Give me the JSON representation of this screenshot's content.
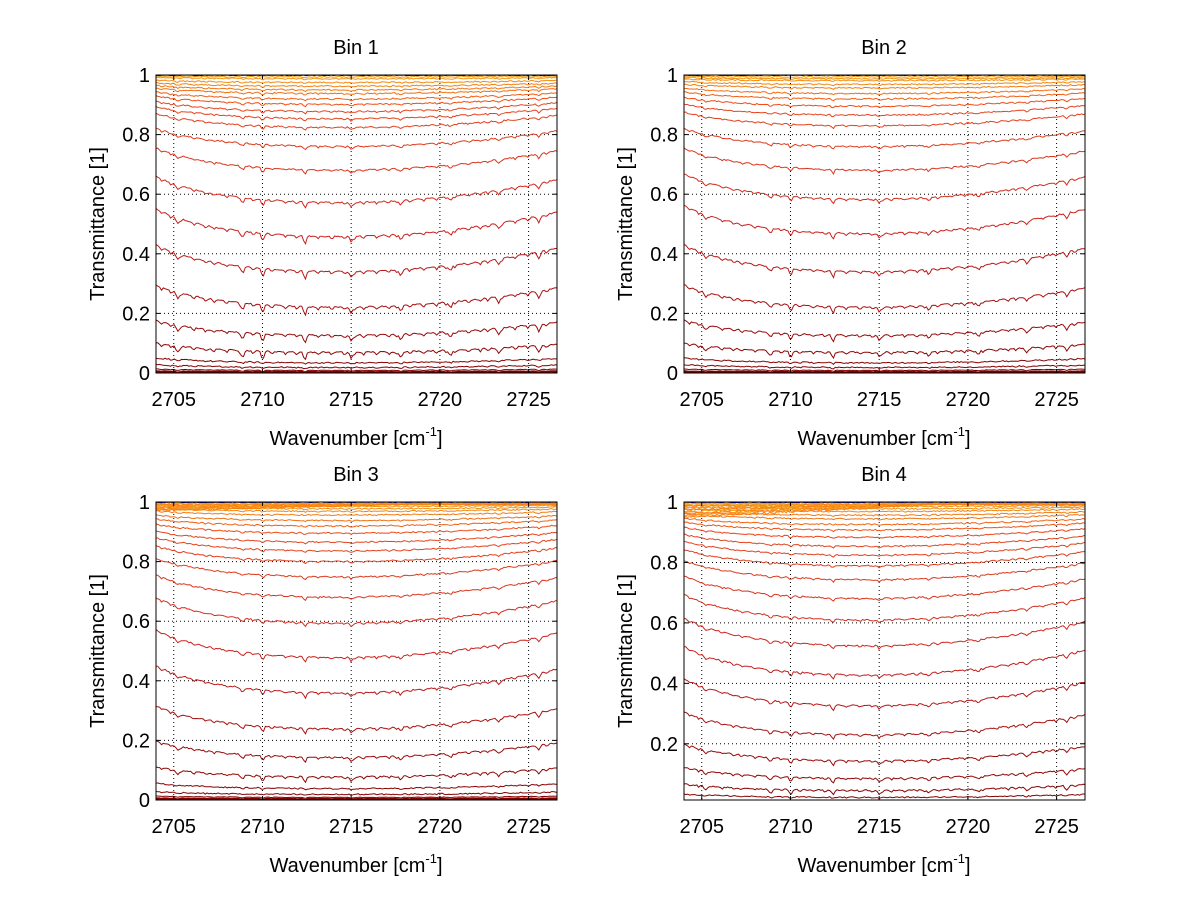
{
  "chart_data": [
    {
      "type": "line",
      "title": "Bin 1",
      "xlabel": "Wavenumber [cm",
      "xlabel_sup": "-1",
      "xlabel_tail": "]",
      "ylabel": "Transmittance [1]",
      "xlim": [
        2704.0,
        2726.6
      ],
      "ylim": [
        0,
        1
      ],
      "xticks": [
        2705,
        2710,
        2715,
        2720,
        2725
      ],
      "yticks": [
        0,
        0.2,
        0.4,
        0.6,
        0.8,
        1
      ],
      "ytick_labels": [
        "0",
        "0.2",
        "0.4",
        "0.6",
        "0.8",
        "1"
      ],
      "grid": true,
      "series_baselines": [
        1.0,
        0.995,
        0.99,
        0.98,
        0.97,
        0.96,
        0.95,
        0.935,
        0.92,
        0.9,
        0.88,
        0.855,
        0.8,
        0.73,
        0.63,
        0.52,
        0.4,
        0.27,
        0.16,
        0.09,
        0.045,
        0.025,
        0.012,
        0.005,
        0.0
      ],
      "dip_strength": 1.0
    },
    {
      "type": "line",
      "title": "Bin 2",
      "xlabel": "Wavenumber [cm",
      "xlabel_sup": "-1",
      "xlabel_tail": "]",
      "ylabel": "Transmittance [1]",
      "xlim": [
        2704.0,
        2726.6
      ],
      "ylim": [
        0,
        1
      ],
      "xticks": [
        2705,
        2710,
        2715,
        2720,
        2725
      ],
      "yticks": [
        0,
        0.2,
        0.4,
        0.6,
        0.8,
        1
      ],
      "ytick_labels": [
        "0",
        "0.2",
        "0.4",
        "0.6",
        "0.8",
        "1"
      ],
      "grid": true,
      "series_baselines": [
        1.0,
        0.995,
        0.99,
        0.985,
        0.975,
        0.965,
        0.95,
        0.935,
        0.915,
        0.89,
        0.86,
        0.8,
        0.73,
        0.64,
        0.53,
        0.4,
        0.27,
        0.16,
        0.09,
        0.045,
        0.025,
        0.012,
        0.005,
        0.0
      ],
      "dip_strength": 0.8
    },
    {
      "type": "line",
      "title": "Bin 3",
      "xlabel": "Wavenumber [cm",
      "xlabel_sup": "-1",
      "xlabel_tail": "]",
      "ylabel": "Transmittance [1]",
      "xlim": [
        2704.0,
        2726.6
      ],
      "ylim": [
        0,
        1
      ],
      "xticks": [
        2705,
        2710,
        2715,
        2720,
        2725
      ],
      "yticks": [
        0,
        0.2,
        0.4,
        0.6,
        0.8,
        1
      ],
      "ytick_labels": [
        "0",
        "0.2",
        "0.4",
        "0.6",
        "0.8",
        "1"
      ],
      "grid": true,
      "series_baselines": [
        1.0,
        0.997,
        0.993,
        0.988,
        0.982,
        0.975,
        0.965,
        0.95,
        0.935,
        0.915,
        0.89,
        0.865,
        0.835,
        0.79,
        0.73,
        0.65,
        0.54,
        0.42,
        0.29,
        0.18,
        0.1,
        0.05,
        0.025,
        0.012,
        0.005,
        0.0
      ],
      "dip_strength": 0.7
    },
    {
      "type": "line",
      "title": "Bin 4",
      "xlabel": "Wavenumber [cm",
      "xlabel_sup": "-1",
      "xlabel_tail": "]",
      "ylabel": "Transmittance [1]",
      "xlim": [
        2704.0,
        2726.6
      ],
      "ylim": [
        0.014,
        1
      ],
      "xticks": [
        2705,
        2710,
        2715,
        2720,
        2725
      ],
      "yticks": [
        0.2,
        0.4,
        0.6,
        0.8,
        1
      ],
      "ytick_labels": [
        "0.2",
        "0.4",
        "0.6",
        "0.8",
        "1"
      ],
      "grid": true,
      "series_baselines": [
        1.0,
        0.997,
        0.993,
        0.988,
        0.982,
        0.975,
        0.965,
        0.955,
        0.94,
        0.925,
        0.905,
        0.88,
        0.855,
        0.825,
        0.785,
        0.73,
        0.665,
        0.585,
        0.49,
        0.385,
        0.28,
        0.18,
        0.11,
        0.06,
        0.03
      ],
      "dip_strength": 0.6
    }
  ],
  "colors": {
    "top_series": "#00008f",
    "mid_series": "#ff8c00",
    "low_series": "#d01c1c",
    "bottom_series": "#800000",
    "grid": "#000000",
    "axes": "#000000"
  }
}
